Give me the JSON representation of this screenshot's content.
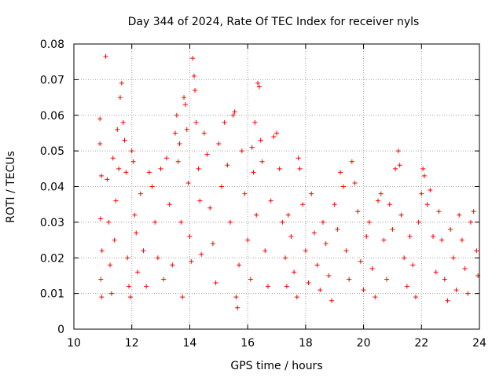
{
  "chart_data": {
    "type": "scatter",
    "title": "Day 344 of 2024, Rate Of TEC Index for receiver nyls",
    "xlabel": "GPS time / hours",
    "ylabel": "ROTI / TECUs",
    "xlim": [
      10,
      24
    ],
    "ylim": [
      0,
      0.08
    ],
    "xticks": [
      10,
      12,
      14,
      16,
      18,
      20,
      22,
      24
    ],
    "xtick_labels": [
      "10",
      "12",
      "14",
      "16",
      "18",
      "20",
      "22",
      "24"
    ],
    "yticks": [
      0,
      0.01,
      0.02,
      0.03,
      0.04,
      0.05,
      0.06,
      0.07,
      0.08
    ],
    "ytick_labels": [
      "0",
      "0.01",
      "0.02",
      "0.03",
      "0.04",
      "0.05",
      "0.06",
      "0.07",
      "0.08"
    ],
    "grid": true,
    "marker": "+",
    "color": "#ff0000",
    "series": [
      {
        "name": "ROTI",
        "points": [
          [
            10.9,
            0.059
          ],
          [
            10.9,
            0.052
          ],
          [
            10.95,
            0.043
          ],
          [
            10.92,
            0.031
          ],
          [
            10.97,
            0.022
          ],
          [
            10.93,
            0.014
          ],
          [
            10.96,
            0.009
          ],
          [
            11.1,
            0.0765
          ],
          [
            11.15,
            0.042
          ],
          [
            11.2,
            0.03
          ],
          [
            11.25,
            0.018
          ],
          [
            11.3,
            0.01
          ],
          [
            11.35,
            0.048
          ],
          [
            11.4,
            0.025
          ],
          [
            11.45,
            0.036
          ],
          [
            11.5,
            0.056
          ],
          [
            11.55,
            0.045
          ],
          [
            11.6,
            0.065
          ],
          [
            11.65,
            0.069
          ],
          [
            11.7,
            0.058
          ],
          [
            11.75,
            0.053
          ],
          [
            11.8,
            0.044
          ],
          [
            11.85,
            0.02
          ],
          [
            11.9,
            0.012
          ],
          [
            11.95,
            0.009
          ],
          [
            12.0,
            0.05
          ],
          [
            12.05,
            0.047
          ],
          [
            12.1,
            0.032
          ],
          [
            12.15,
            0.027
          ],
          [
            12.2,
            0.016
          ],
          [
            12.3,
            0.038
          ],
          [
            12.4,
            0.022
          ],
          [
            12.5,
            0.012
          ],
          [
            12.6,
            0.044
          ],
          [
            12.7,
            0.04
          ],
          [
            12.8,
            0.03
          ],
          [
            12.9,
            0.02
          ],
          [
            13.0,
            0.045
          ],
          [
            13.1,
            0.014
          ],
          [
            13.2,
            0.048
          ],
          [
            13.3,
            0.035
          ],
          [
            13.4,
            0.018
          ],
          [
            13.5,
            0.055
          ],
          [
            13.55,
            0.06
          ],
          [
            13.6,
            0.047
          ],
          [
            13.65,
            0.052
          ],
          [
            13.7,
            0.03
          ],
          [
            13.75,
            0.009
          ],
          [
            13.8,
            0.065
          ],
          [
            13.85,
            0.063
          ],
          [
            13.9,
            0.056
          ],
          [
            13.95,
            0.041
          ],
          [
            14.0,
            0.026
          ],
          [
            14.05,
            0.019
          ],
          [
            14.1,
            0.076
          ],
          [
            14.15,
            0.071
          ],
          [
            14.18,
            0.067
          ],
          [
            14.22,
            0.058
          ],
          [
            14.3,
            0.045
          ],
          [
            14.35,
            0.036
          ],
          [
            14.4,
            0.021
          ],
          [
            14.5,
            0.055
          ],
          [
            14.6,
            0.049
          ],
          [
            14.7,
            0.034
          ],
          [
            14.8,
            0.024
          ],
          [
            14.9,
            0.013
          ],
          [
            15.0,
            0.052
          ],
          [
            15.1,
            0.04
          ],
          [
            15.2,
            0.058
          ],
          [
            15.3,
            0.046
          ],
          [
            15.4,
            0.03
          ],
          [
            15.5,
            0.06
          ],
          [
            15.55,
            0.061
          ],
          [
            15.6,
            0.009
          ],
          [
            15.65,
            0.006
          ],
          [
            15.7,
            0.018
          ],
          [
            15.8,
            0.05
          ],
          [
            15.9,
            0.038
          ],
          [
            16.0,
            0.025
          ],
          [
            16.1,
            0.014
          ],
          [
            16.15,
            0.051
          ],
          [
            16.2,
            0.044
          ],
          [
            16.25,
            0.058
          ],
          [
            16.3,
            0.032
          ],
          [
            16.35,
            0.069
          ],
          [
            16.4,
            0.068
          ],
          [
            16.45,
            0.053
          ],
          [
            16.5,
            0.047
          ],
          [
            16.6,
            0.022
          ],
          [
            16.7,
            0.012
          ],
          [
            16.8,
            0.036
          ],
          [
            16.9,
            0.054
          ],
          [
            17.0,
            0.055
          ],
          [
            17.1,
            0.045
          ],
          [
            17.2,
            0.03
          ],
          [
            17.3,
            0.02
          ],
          [
            17.35,
            0.012
          ],
          [
            17.4,
            0.032
          ],
          [
            17.5,
            0.026
          ],
          [
            17.6,
            0.016
          ],
          [
            17.7,
            0.009
          ],
          [
            17.75,
            0.048
          ],
          [
            17.8,
            0.045
          ],
          [
            17.9,
            0.035
          ],
          [
            18.0,
            0.022
          ],
          [
            18.1,
            0.013
          ],
          [
            18.2,
            0.038
          ],
          [
            18.3,
            0.027
          ],
          [
            18.4,
            0.018
          ],
          [
            18.5,
            0.011
          ],
          [
            18.6,
            0.03
          ],
          [
            18.7,
            0.024
          ],
          [
            18.8,
            0.015
          ],
          [
            18.9,
            0.008
          ],
          [
            19.0,
            0.035
          ],
          [
            19.1,
            0.028
          ],
          [
            19.2,
            0.044
          ],
          [
            19.3,
            0.04
          ],
          [
            19.4,
            0.022
          ],
          [
            19.5,
            0.014
          ],
          [
            19.6,
            0.047
          ],
          [
            19.7,
            0.041
          ],
          [
            19.8,
            0.033
          ],
          [
            19.9,
            0.019
          ],
          [
            20.0,
            0.011
          ],
          [
            20.1,
            0.026
          ],
          [
            20.2,
            0.03
          ],
          [
            20.3,
            0.017
          ],
          [
            20.4,
            0.009
          ],
          [
            20.5,
            0.036
          ],
          [
            20.6,
            0.038
          ],
          [
            20.7,
            0.025
          ],
          [
            20.8,
            0.014
          ],
          [
            20.9,
            0.035
          ],
          [
            21.0,
            0.028
          ],
          [
            21.1,
            0.045
          ],
          [
            21.2,
            0.05
          ],
          [
            21.25,
            0.046
          ],
          [
            21.3,
            0.032
          ],
          [
            21.4,
            0.02
          ],
          [
            21.5,
            0.012
          ],
          [
            21.6,
            0.026
          ],
          [
            21.7,
            0.018
          ],
          [
            21.8,
            0.009
          ],
          [
            21.9,
            0.03
          ],
          [
            22.0,
            0.038
          ],
          [
            22.05,
            0.045
          ],
          [
            22.1,
            0.043
          ],
          [
            22.2,
            0.035
          ],
          [
            22.3,
            0.039
          ],
          [
            22.4,
            0.026
          ],
          [
            22.5,
            0.016
          ],
          [
            22.6,
            0.033
          ],
          [
            22.7,
            0.025
          ],
          [
            22.8,
            0.014
          ],
          [
            22.9,
            0.008
          ],
          [
            23.0,
            0.028
          ],
          [
            23.1,
            0.02
          ],
          [
            23.2,
            0.011
          ],
          [
            23.3,
            0.032
          ],
          [
            23.4,
            0.025
          ],
          [
            23.5,
            0.017
          ],
          [
            23.6,
            0.01
          ],
          [
            23.7,
            0.03
          ],
          [
            23.8,
            0.033
          ],
          [
            23.9,
            0.022
          ],
          [
            23.95,
            0.015
          ]
        ]
      }
    ]
  }
}
